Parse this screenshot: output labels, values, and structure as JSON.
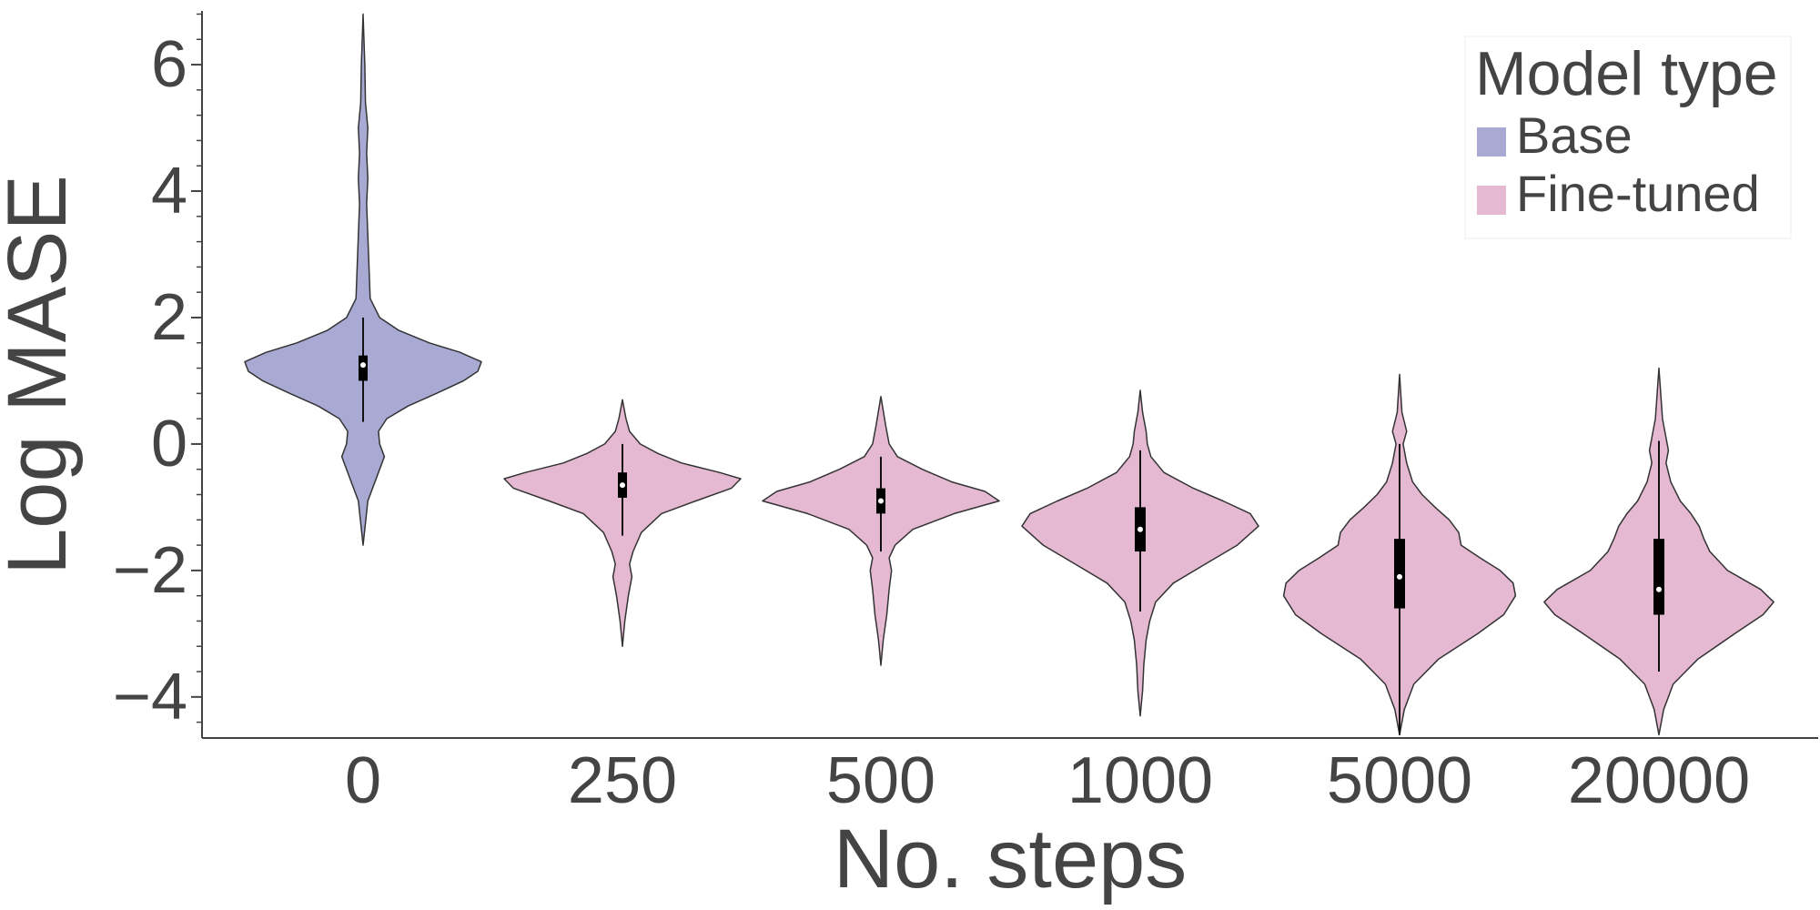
{
  "chart_data": {
    "type": "violin",
    "xlabel": "No. steps",
    "ylabel": "Log MASE",
    "categories": [
      "0",
      "250",
      "500",
      "1000",
      "5000",
      "20000"
    ],
    "ylim": [
      -4.65,
      6.85
    ],
    "yticks": [
      {
        "value": 6,
        "label": "6"
      },
      {
        "value": 4,
        "label": "4"
      },
      {
        "value": 2,
        "label": "2"
      },
      {
        "value": 0,
        "label": "0"
      },
      {
        "value": -2,
        "label": "−2"
      },
      {
        "value": -4,
        "label": "−4"
      }
    ],
    "minor_tick_step": 0.4,
    "grid": false,
    "legend": {
      "title": "Model type",
      "position": "top-right",
      "entries": [
        {
          "name": "Base",
          "color": "#a8aad4"
        },
        {
          "name": "Fine-tuned",
          "color": "#e6b9d3"
        }
      ]
    },
    "violins": [
      {
        "category": "0",
        "group": "Base",
        "q1": 1.0,
        "median": 1.25,
        "q3": 1.4,
        "whisker_low": 0.35,
        "whisker_high": 2.0,
        "min": -1.6,
        "max": 6.8,
        "profile": [
          [
            -1.6,
            0
          ],
          [
            -0.9,
            0.04
          ],
          [
            -0.5,
            0.12
          ],
          [
            -0.2,
            0.18
          ],
          [
            0.0,
            0.14
          ],
          [
            0.2,
            0.13
          ],
          [
            0.4,
            0.2
          ],
          [
            0.6,
            0.38
          ],
          [
            0.8,
            0.62
          ],
          [
            1.0,
            0.85
          ],
          [
            1.15,
            0.97
          ],
          [
            1.3,
            1.0
          ],
          [
            1.45,
            0.82
          ],
          [
            1.6,
            0.56
          ],
          [
            1.8,
            0.3
          ],
          [
            2.0,
            0.14
          ],
          [
            2.3,
            0.06
          ],
          [
            2.8,
            0.05
          ],
          [
            3.3,
            0.04
          ],
          [
            3.8,
            0.03
          ],
          [
            4.2,
            0.04
          ],
          [
            4.6,
            0.03
          ],
          [
            5.0,
            0.04
          ],
          [
            5.4,
            0.02
          ],
          [
            6.0,
            0.015
          ],
          [
            6.8,
            0
          ]
        ]
      },
      {
        "category": "250",
        "group": "Fine-tuned",
        "q1": -0.85,
        "median": -0.65,
        "q3": -0.45,
        "whisker_low": -1.45,
        "whisker_high": 0.0,
        "min": -3.2,
        "max": 0.7,
        "profile": [
          [
            -3.2,
            0
          ],
          [
            -2.8,
            0.02
          ],
          [
            -2.4,
            0.05
          ],
          [
            -2.1,
            0.08
          ],
          [
            -1.9,
            0.06
          ],
          [
            -1.7,
            0.09
          ],
          [
            -1.4,
            0.16
          ],
          [
            -1.1,
            0.33
          ],
          [
            -0.9,
            0.62
          ],
          [
            -0.7,
            0.92
          ],
          [
            -0.55,
            1.0
          ],
          [
            -0.45,
            0.82
          ],
          [
            -0.3,
            0.5
          ],
          [
            -0.15,
            0.3
          ],
          [
            0.0,
            0.15
          ],
          [
            0.2,
            0.06
          ],
          [
            0.4,
            0.03
          ],
          [
            0.7,
            0
          ]
        ]
      },
      {
        "category": "500",
        "group": "Fine-tuned",
        "q1": -1.1,
        "median": -0.9,
        "q3": -0.7,
        "whisker_low": -1.7,
        "whisker_high": -0.2,
        "min": -3.5,
        "max": 0.75,
        "profile": [
          [
            -3.5,
            0
          ],
          [
            -3.1,
            0.02
          ],
          [
            -2.7,
            0.05
          ],
          [
            -2.3,
            0.07
          ],
          [
            -2.0,
            0.09
          ],
          [
            -1.8,
            0.07
          ],
          [
            -1.6,
            0.12
          ],
          [
            -1.35,
            0.27
          ],
          [
            -1.1,
            0.62
          ],
          [
            -0.9,
            1.0
          ],
          [
            -0.75,
            0.88
          ],
          [
            -0.6,
            0.6
          ],
          [
            -0.4,
            0.35
          ],
          [
            -0.2,
            0.14
          ],
          [
            0.0,
            0.07
          ],
          [
            0.3,
            0.04
          ],
          [
            0.75,
            0
          ]
        ]
      },
      {
        "category": "1000",
        "group": "Fine-tuned",
        "q1": -1.7,
        "median": -1.35,
        "q3": -1.0,
        "whisker_low": -2.65,
        "whisker_high": -0.1,
        "min": -4.3,
        "max": 0.85,
        "profile": [
          [
            -4.3,
            0
          ],
          [
            -3.9,
            0.02
          ],
          [
            -3.5,
            0.03
          ],
          [
            -3.1,
            0.05
          ],
          [
            -2.8,
            0.08
          ],
          [
            -2.5,
            0.13
          ],
          [
            -2.2,
            0.28
          ],
          [
            -1.9,
            0.55
          ],
          [
            -1.6,
            0.82
          ],
          [
            -1.3,
            1.0
          ],
          [
            -1.1,
            0.93
          ],
          [
            -0.9,
            0.7
          ],
          [
            -0.7,
            0.45
          ],
          [
            -0.45,
            0.2
          ],
          [
            -0.2,
            0.09
          ],
          [
            0.0,
            0.06
          ],
          [
            0.2,
            0.05
          ],
          [
            0.5,
            0.02
          ],
          [
            0.85,
            0
          ]
        ]
      },
      {
        "category": "5000",
        "group": "Fine-tuned",
        "q1": -2.6,
        "median": -2.1,
        "q3": -1.5,
        "whisker_low": -4.6,
        "whisker_high": 0.0,
        "min": -4.6,
        "max": 1.1,
        "profile": [
          [
            -4.6,
            0
          ],
          [
            -4.2,
            0.04
          ],
          [
            -3.8,
            0.12
          ],
          [
            -3.4,
            0.33
          ],
          [
            -3.0,
            0.66
          ],
          [
            -2.7,
            0.88
          ],
          [
            -2.4,
            0.98
          ],
          [
            -2.2,
            0.96
          ],
          [
            -2.0,
            0.85
          ],
          [
            -1.8,
            0.68
          ],
          [
            -1.6,
            0.52
          ],
          [
            -1.4,
            0.5
          ],
          [
            -1.2,
            0.42
          ],
          [
            -1.0,
            0.3
          ],
          [
            -0.8,
            0.19
          ],
          [
            -0.6,
            0.11
          ],
          [
            -0.3,
            0.06
          ],
          [
            0.0,
            0.03
          ],
          [
            0.2,
            0.06
          ],
          [
            0.5,
            0.02
          ],
          [
            1.1,
            0
          ]
        ]
      },
      {
        "category": "20000",
        "group": "Fine-tuned",
        "q1": -2.7,
        "median": -2.3,
        "q3": -1.5,
        "whisker_low": -3.6,
        "whisker_high": 0.05,
        "min": -4.6,
        "max": 1.2,
        "profile": [
          [
            -4.6,
            0
          ],
          [
            -4.2,
            0.04
          ],
          [
            -3.8,
            0.12
          ],
          [
            -3.4,
            0.33
          ],
          [
            -3.0,
            0.64
          ],
          [
            -2.7,
            0.88
          ],
          [
            -2.5,
            0.97
          ],
          [
            -2.3,
            0.86
          ],
          [
            -2.0,
            0.58
          ],
          [
            -1.7,
            0.43
          ],
          [
            -1.5,
            0.38
          ],
          [
            -1.3,
            0.34
          ],
          [
            -1.1,
            0.27
          ],
          [
            -0.9,
            0.18
          ],
          [
            -0.6,
            0.1
          ],
          [
            -0.3,
            0.06
          ],
          [
            -0.1,
            0.08
          ],
          [
            0.1,
            0.06
          ],
          [
            0.4,
            0.03
          ],
          [
            1.2,
            0
          ]
        ]
      }
    ]
  }
}
